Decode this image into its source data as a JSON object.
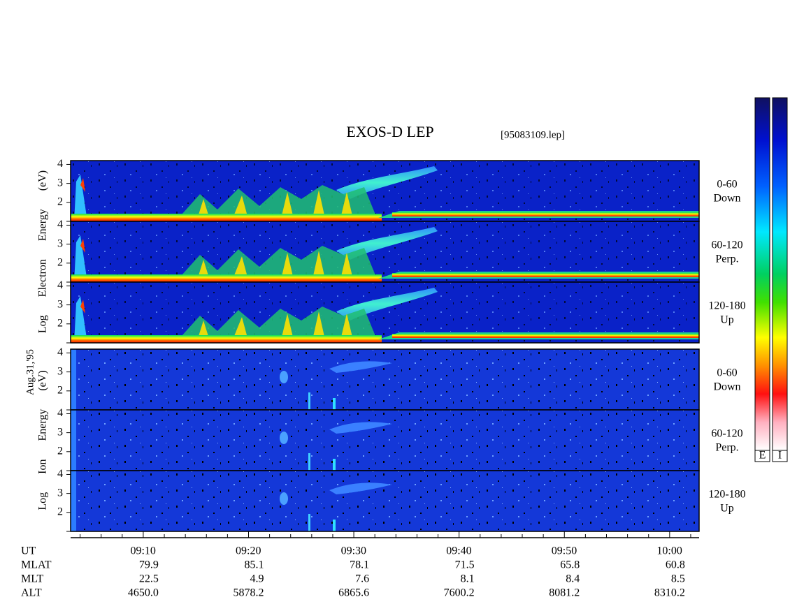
{
  "chart_data": {
    "type": "spectrogram",
    "title": "EXOS-D LEP",
    "subtitle": "[95083109.lep]",
    "date_label": "Aug.31,'95",
    "xlim": [
      543.1,
      602.8
    ],
    "xticks": [
      {
        "value": 550,
        "label": "09:10"
      },
      {
        "value": 560,
        "label": "09:20"
      },
      {
        "value": 570,
        "label": "09:30"
      },
      {
        "value": 580,
        "label": "09:40"
      },
      {
        "value": 590,
        "label": "09:50"
      },
      {
        "value": 600,
        "label": "10:00"
      }
    ],
    "minor_xticks": [
      544,
      546,
      548,
      552,
      554,
      556,
      558,
      562,
      564,
      566,
      568,
      572,
      574,
      576,
      578,
      582,
      584,
      586,
      588,
      592,
      594,
      596,
      598,
      602
    ],
    "ylim": [
      1,
      4.2
    ],
    "yticks": [
      2,
      3,
      4
    ],
    "groups": [
      {
        "ylabel": "Log Electron Energy (eV)",
        "panels": [
          {
            "label": [
              "0-60",
              "Down"
            ]
          },
          {
            "label": [
              "60-120",
              "Perp."
            ]
          },
          {
            "label": [
              "120-180",
              "Up"
            ]
          }
        ]
      },
      {
        "ylabel": "Log Ion Energy (eV)",
        "panels": [
          {
            "label": [
              "0-60",
              "Down"
            ]
          },
          {
            "label": [
              "60-120",
              "Perp."
            ]
          },
          {
            "label": [
              "120-180",
              "Up"
            ]
          }
        ]
      }
    ],
    "ephemeris": [
      {
        "name": "UT",
        "values": []
      },
      {
        "name": "MLAT",
        "values": [
          "79.9",
          "85.1",
          "78.1",
          "71.5",
          "65.8",
          "60.8"
        ]
      },
      {
        "name": "MLT",
        "values": [
          "22.5",
          "4.9",
          "7.6",
          "8.1",
          "8.4",
          "8.5"
        ]
      },
      {
        "name": "ALT",
        "values": [
          "4650.0",
          "5878.2",
          "6865.6",
          "7600.2",
          "8081.2",
          "8310.2"
        ]
      }
    ],
    "colorbar_labels": [
      "E",
      "I"
    ]
  }
}
